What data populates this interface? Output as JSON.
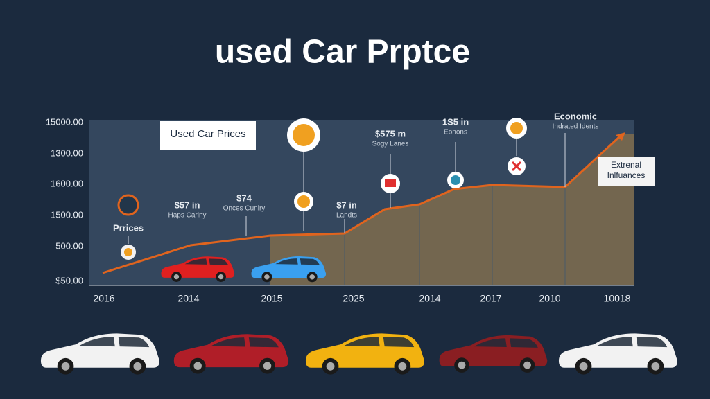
{
  "title": "used Car Prptce",
  "legend_box": "Used Car Prices",
  "side_box": [
    "Extrenal",
    "Inlfuances"
  ],
  "y_labels": [
    "15000.00",
    "1300.00",
    "1600.00",
    "1500.00",
    "500.00",
    "$50.00"
  ],
  "x_labels": [
    "2016",
    "2014",
    "2015",
    "2025",
    "2014",
    "2017",
    "2010",
    "10018"
  ],
  "annotations": [
    {
      "lines": [
        "Prrices"
      ]
    },
    {
      "lines": [
        "$57 in",
        "Haps Cariny"
      ]
    },
    {
      "lines": [
        "$74",
        "Onces Cuniry"
      ]
    },
    {
      "lines": [
        "$7 in",
        "Landts"
      ]
    },
    {
      "lines": [
        "$575 m",
        "Sogy Lanes"
      ]
    },
    {
      "lines": [
        "1S5 in",
        "Eonons"
      ]
    },
    {
      "lines": [
        "Economic",
        "Indrated Idents"
      ]
    }
  ]
}
